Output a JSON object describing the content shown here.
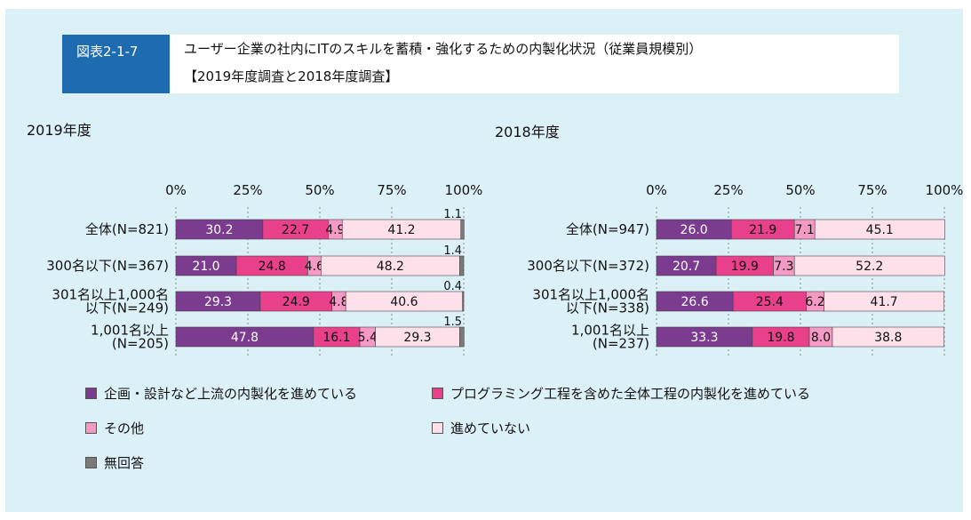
{
  "figure": {
    "label": "図表2-1-7",
    "title_line1": "ユーザー企業の社内にITのスキルを蓄積・強化するための内製化状況（従業員規模別）",
    "title_line2": "【2019年度調査と2018年度調査】"
  },
  "colors": {
    "cat1": "#7b3b8f",
    "cat2": "#e8408a",
    "cat3": "#f49ac4",
    "cat4": "#fde0ea",
    "cat5": "#7a7a7a"
  },
  "legend": [
    {
      "label": "企画・設計など上流の内製化を進めている",
      "color_key": "cat1"
    },
    {
      "label": "プログラミング工程を含めた全体工程の内製化を進めている",
      "color_key": "cat2"
    },
    {
      "label": "その他",
      "color_key": "cat3"
    },
    {
      "label": "進めていない",
      "color_key": "cat4"
    },
    {
      "label": "無回答",
      "color_key": "cat5"
    }
  ],
  "chart_data": [
    {
      "type": "bar",
      "orientation": "horizontal-stacked-100",
      "title": "2019年度",
      "x_ticks": [
        "0%",
        "25%",
        "50%",
        "75%",
        "100%"
      ],
      "xlim": [
        0,
        100
      ],
      "categories": [
        {
          "label": [
            "全体(N=821)"
          ],
          "values": [
            30.2,
            22.7,
            4.9,
            41.2,
            1.1
          ],
          "labels": [
            "30.2",
            "22.7",
            "4.9",
            "41.2",
            "1.1"
          ]
        },
        {
          "label": [
            "300名以下(N=367)"
          ],
          "values": [
            21.0,
            24.8,
            4.6,
            48.2,
            1.4
          ],
          "labels": [
            "21.0",
            "24.8",
            "4.6",
            "48.2",
            "1.4"
          ]
        },
        {
          "label": [
            "301名以上1,000名",
            "以下(N=249)"
          ],
          "values": [
            29.3,
            24.9,
            4.8,
            40.6,
            0.4
          ],
          "labels": [
            "29.3",
            "24.9",
            "4.8",
            "40.6",
            "0.4"
          ]
        },
        {
          "label": [
            "1,001名以上",
            "(N=205)"
          ],
          "values": [
            47.8,
            16.1,
            5.4,
            29.3,
            1.5
          ],
          "labels": [
            "47.8",
            "16.1",
            "5.4",
            "29.3",
            "1.5"
          ]
        }
      ]
    },
    {
      "type": "bar",
      "orientation": "horizontal-stacked-100",
      "title": "2018年度",
      "x_ticks": [
        "0%",
        "25%",
        "50%",
        "75%",
        "100%"
      ],
      "xlim": [
        0,
        100
      ],
      "categories": [
        {
          "label": [
            "全体(N=947)"
          ],
          "values": [
            26.0,
            21.9,
            7.1,
            45.1
          ],
          "labels": [
            "26.0",
            "21.9",
            "7.1",
            "45.1"
          ]
        },
        {
          "label": [
            "300名以下(N=372)"
          ],
          "values": [
            20.7,
            19.9,
            7.3,
            52.2
          ],
          "labels": [
            "20.7",
            "19.9",
            "7.3",
            "52.2"
          ]
        },
        {
          "label": [
            "301名以上1,000名",
            "以下(N=338)"
          ],
          "values": [
            26.6,
            25.4,
            6.2,
            41.7
          ],
          "labels": [
            "26.6",
            "25.4",
            "6.2",
            "41.7"
          ]
        },
        {
          "label": [
            "1,001名以上",
            "(N=237)"
          ],
          "values": [
            33.3,
            19.8,
            8.0,
            38.8
          ],
          "labels": [
            "33.3",
            "19.8",
            "8.0",
            "38.8"
          ]
        }
      ]
    }
  ]
}
